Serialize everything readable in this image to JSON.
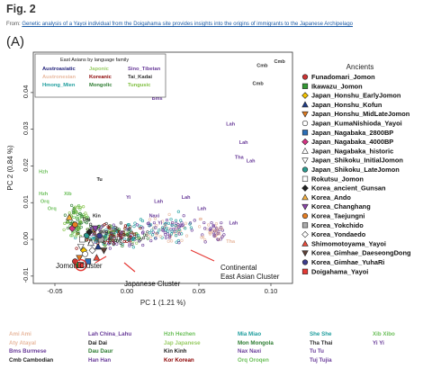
{
  "header": {
    "fig": "Fig. 2",
    "from_prefix": "From: ",
    "from_link": "Genetic analysis of a Yayoi individual from the Doigahama site provides insights into the origins of immigrants to the Japanese Archipelago",
    "panel": "(A)"
  },
  "chart_data": {
    "type": "scatter",
    "xlabel": "PC 1 (1.21 %)",
    "ylabel": "PC 2 (0.84 %)",
    "xlim": [
      -0.065,
      0.115
    ],
    "ylim": [
      -0.012,
      0.051
    ],
    "xticks": [
      -0.05,
      0.0,
      0.05,
      0.1
    ],
    "xtick_labels": [
      "-0.05",
      "0.00",
      "0.05",
      "0.10"
    ],
    "yticks": [
      -0.01,
      0.0,
      0.01,
      0.02,
      0.03,
      0.04
    ],
    "ytick_labels": [
      "-0.01",
      "0.00",
      "0.01",
      "0.02",
      "0.03",
      "0.04"
    ],
    "legend_box": {
      "title": "East Asians by language family",
      "entries": [
        {
          "label": "Austroasiatic",
          "color": "#1f1f7a"
        },
        {
          "label": "Japonic",
          "color": "#99cc66"
        },
        {
          "label": "Sino_Tibetan",
          "color": "#6a3d9a"
        },
        {
          "label": "Austronesian",
          "color": "#e8b9a0"
        },
        {
          "label": "Koreanic",
          "color": "#8b0000"
        },
        {
          "label": "Tai_Kadai",
          "color": "#333333"
        },
        {
          "label": "Hmong_Mien",
          "color": "#1f9e9e"
        },
        {
          "label": "Mongolic",
          "color": "#2e7d32"
        },
        {
          "label": "Tungusic",
          "color": "#7fbf3f"
        }
      ]
    },
    "ancients_title": "Ancients",
    "ancients": [
      {
        "label": "Funadomari_Jomon",
        "color": "#cc3333",
        "shape": "circle"
      },
      {
        "label": "Ikawazu_Jomon",
        "color": "#339933",
        "shape": "square"
      },
      {
        "label": "Japan_Honshu_EarlyJomon",
        "color": "#f2c200",
        "shape": "diamond"
      },
      {
        "label": "Japan_Honshu_Kofun",
        "color": "#1f3c88",
        "shape": "triangle"
      },
      {
        "label": "Japan_Honshu_MidLateJomon",
        "color": "#e07b20",
        "shape": "triangle-down"
      },
      {
        "label": "Japan_KumaNishioda_Yayoi",
        "color": "#ffffff",
        "shape": "circle-open"
      },
      {
        "label": "Japan_Nagabaka_2800BP",
        "color": "#2c6fb7",
        "shape": "square"
      },
      {
        "label": "Japan_Nagabaka_4000BP",
        "color": "#d63384",
        "shape": "diamond"
      },
      {
        "label": "Japan_Nagabaka_historic",
        "color": "#ffffff",
        "shape": "triangle-open"
      },
      {
        "label": "Japan_Shikoku_InitialJomon",
        "color": "#ffffff",
        "shape": "triangle-down-open"
      },
      {
        "label": "Japan_Shikoku_LateJomon",
        "color": "#2b9b8f",
        "shape": "circle"
      },
      {
        "label": "Rokutsu_Jomon",
        "color": "#ffffff",
        "shape": "square-open"
      },
      {
        "label": "Korea_ancient_Gunsan",
        "color": "#222222",
        "shape": "diamond"
      },
      {
        "label": "Korea_Ando",
        "color": "#f5b041",
        "shape": "triangle"
      },
      {
        "label": "Korea_Changhang",
        "color": "#8e44ad",
        "shape": "triangle-down"
      },
      {
        "label": "Korea_Taejungni",
        "color": "#e67e22",
        "shape": "circle"
      },
      {
        "label": "Korea_Yokchido",
        "color": "#aaaaaa",
        "shape": "square"
      },
      {
        "label": "Korea_Yondaedo",
        "color": "#ffffff",
        "shape": "diamond-open"
      },
      {
        "label": "Shimomotoyama_Yayoi",
        "color": "#e74c3c",
        "shape": "triangle"
      },
      {
        "label": "Korea_Gimhae_DaeseongDong",
        "color": "#5d4037",
        "shape": "triangle-down"
      },
      {
        "label": "Korea_Gimhae_YuhaRi",
        "color": "#3c3c8c",
        "shape": "circle"
      },
      {
        "label": "Doigahama_Yayoi",
        "color": "#e53935",
        "shape": "square"
      }
    ],
    "population_labels": [
      {
        "text": "Cmb",
        "x": 0.094,
        "y": 0.047,
        "color": "#333333"
      },
      {
        "text": "Cmb",
        "x": 0.106,
        "y": 0.048,
        "color": "#333333"
      },
      {
        "text": "Cmb",
        "x": 0.091,
        "y": 0.042,
        "color": "#333333"
      },
      {
        "text": "Bms",
        "x": 0.021,
        "y": 0.038,
        "color": "#6a3d9a"
      },
      {
        "text": "Lah",
        "x": 0.072,
        "y": 0.031,
        "color": "#6a3d9a"
      },
      {
        "text": "Lah",
        "x": 0.081,
        "y": 0.026,
        "color": "#6a3d9a"
      },
      {
        "text": "Tha",
        "x": 0.078,
        "y": 0.022,
        "color": "#6a3d9a"
      },
      {
        "text": "Lah",
        "x": 0.086,
        "y": 0.021,
        "color": "#6a3d9a"
      },
      {
        "text": "Tu",
        "x": -0.019,
        "y": 0.016,
        "color": "#222222"
      },
      {
        "text": "Hzh",
        "x": -0.058,
        "y": 0.018,
        "color": "#6bbf59"
      },
      {
        "text": "Hzh",
        "x": -0.058,
        "y": 0.012,
        "color": "#6bbf59"
      },
      {
        "text": "Orq",
        "x": -0.057,
        "y": 0.01,
        "color": "#6bbf59"
      },
      {
        "text": "Orq",
        "x": -0.052,
        "y": 0.008,
        "color": "#6bbf59"
      },
      {
        "text": "Xib",
        "x": -0.041,
        "y": 0.012,
        "color": "#6bbf59"
      },
      {
        "text": "Yi",
        "x": 0.001,
        "y": 0.011,
        "color": "#6a3d9a"
      },
      {
        "text": "Lah",
        "x": 0.022,
        "y": 0.01,
        "color": "#6a3d9a"
      },
      {
        "text": "Lah",
        "x": 0.041,
        "y": 0.011,
        "color": "#6a3d9a"
      },
      {
        "text": "Lah",
        "x": 0.052,
        "y": 0.008,
        "color": "#6a3d9a"
      },
      {
        "text": "Naxi",
        "x": 0.019,
        "y": 0.006,
        "color": "#6a3d9a"
      },
      {
        "text": "Yi",
        "x": 0.023,
        "y": 0.004,
        "color": "#6a3d9a"
      },
      {
        "text": "Lah",
        "x": 0.074,
        "y": 0.004,
        "color": "#6a3d9a"
      },
      {
        "text": "Tha",
        "x": 0.072,
        "y": -0.001,
        "color": "#e8b9a0"
      },
      {
        "text": "Dai",
        "x": -0.028,
        "y": 0.005,
        "color": "#222222"
      },
      {
        "text": "Kin",
        "x": -0.021,
        "y": 0.006,
        "color": "#222222"
      }
    ],
    "annotations": [
      {
        "text": "Jomon Cluster"
      },
      {
        "text": "Japanese Cluster"
      },
      {
        "text": "Continental"
      },
      {
        "text": "East Asian Cluster"
      }
    ]
  },
  "bottom_legend": [
    {
      "text": "Ami Ami",
      "color": "#e8b9a0"
    },
    {
      "text": "Aty Atayal",
      "color": "#e8b9a0"
    },
    {
      "text": "Bms Burmese",
      "color": "#6a3d9a"
    },
    {
      "text": "Cmb Cambodian",
      "color": "#222222"
    },
    {
      "text": "Lah China_Lahu",
      "color": "#6a3d9a"
    },
    {
      "text": "Dai Dai",
      "color": "#222222"
    },
    {
      "text": "Dau Daur",
      "color": "#2e7d32"
    },
    {
      "text": "Han Han",
      "color": "#6a3d9a"
    },
    {
      "text": "Hzh Hezhen",
      "color": "#6bbf59"
    },
    {
      "text": "Jap Japanese",
      "color": "#99cc66"
    },
    {
      "text": "Kin Kinh",
      "color": "#222222"
    },
    {
      "text": "Kor Korean",
      "color": "#8b0000"
    },
    {
      "text": "Mia Miao",
      "color": "#1f9e9e"
    },
    {
      "text": "Mon Mongola",
      "color": "#2e7d32"
    },
    {
      "text": "Nax Naxi",
      "color": "#6a3d9a"
    },
    {
      "text": "Orq Oroqen",
      "color": "#6bbf59"
    },
    {
      "text": "She She",
      "color": "#1f9e9e"
    },
    {
      "text": "Tha Thai",
      "color": "#333333"
    },
    {
      "text": "Tu Tu",
      "color": "#6a3d9a"
    },
    {
      "text": "Tuj Tujia",
      "color": "#6a3d9a"
    },
    {
      "text": "Xib Xibo",
      "color": "#6bbf59"
    },
    {
      "text": "Yi Yi",
      "color": "#6a3d9a"
    }
  ]
}
